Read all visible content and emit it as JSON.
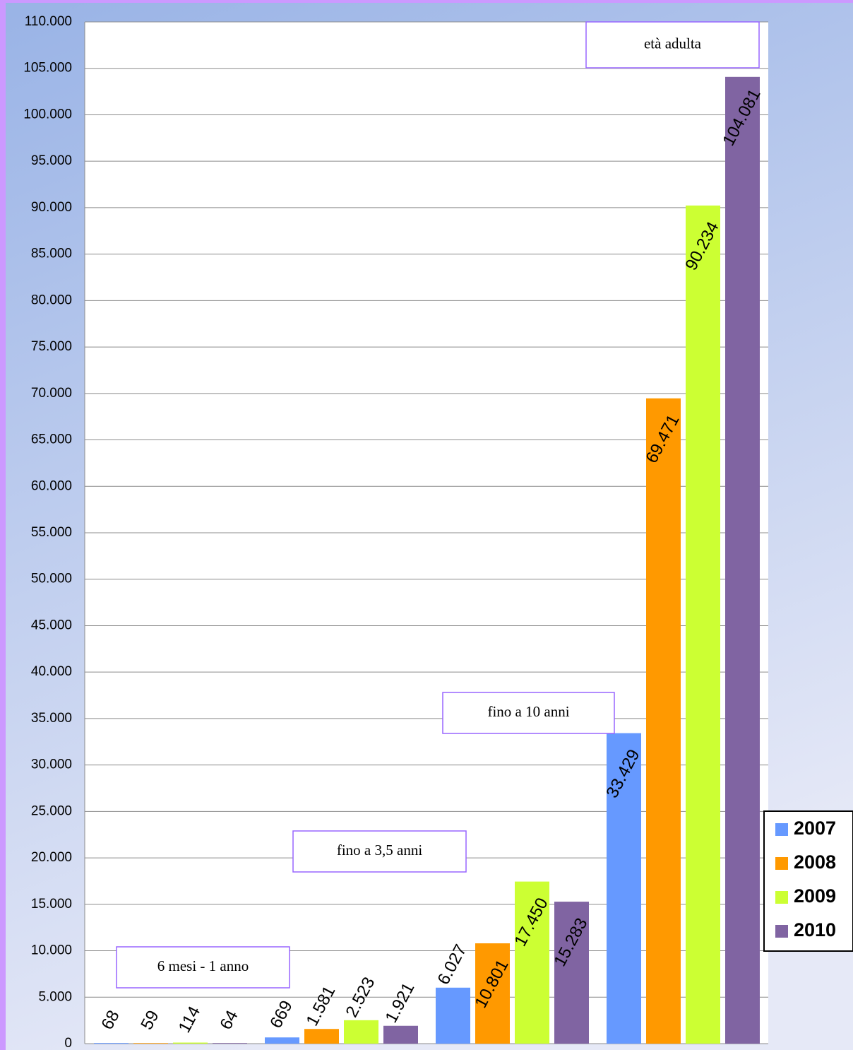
{
  "chart_data": {
    "type": "bar",
    "categories": [
      null,
      null,
      null,
      null
    ],
    "series": [
      {
        "name": "2007",
        "color": "#6699ff",
        "values": [
          68,
          669,
          6027,
          33429
        ],
        "value_labels": [
          "68",
          "669",
          "6.027",
          "33.429"
        ]
      },
      {
        "name": "2008",
        "color": "#ff9900",
        "values": [
          59,
          1581,
          10801,
          69471
        ],
        "value_labels": [
          "59",
          "1.581",
          "10.801",
          "69.471"
        ]
      },
      {
        "name": "2009",
        "color": "#ccff33",
        "values": [
          114,
          2523,
          17450,
          90234
        ],
        "value_labels": [
          "114",
          "2.523",
          "17.450",
          "90.234"
        ]
      },
      {
        "name": "2010",
        "color": "#8064a2",
        "values": [
          64,
          1921,
          15283,
          104081
        ],
        "value_labels": [
          "64",
          "1.921",
          "15.283",
          "104.081"
        ]
      }
    ],
    "annotations": [
      "6 mesi - 1 anno",
      "fino a 3,5 anni",
      "fino a 10 anni",
      "età adulta"
    ],
    "ylim": [
      0,
      110000
    ],
    "yticks": [
      0,
      {
        "value": 5000,
        "label": "5.000"
      },
      {
        "value": 10000,
        "label": "10.000"
      },
      {
        "value": 15000,
        "label": "15.000"
      },
      {
        "value": 20000,
        "label": "20.000"
      },
      {
        "value": 25000,
        "label": "25.000"
      },
      {
        "value": 30000,
        "label": "30.000"
      },
      {
        "value": 35000,
        "label": "35.000"
      },
      {
        "value": 40000,
        "label": "40.000"
      },
      {
        "value": 45000,
        "label": "45.000"
      },
      {
        "value": 50000,
        "label": "50.000"
      },
      {
        "value": 55000,
        "label": "55.000"
      },
      {
        "value": 60000,
        "label": "60.000"
      },
      {
        "value": 65000,
        "label": "65.000"
      },
      {
        "value": 70000,
        "label": "70.000"
      },
      {
        "value": 75000,
        "label": "75.000"
      },
      {
        "value": 80000,
        "label": "80.000"
      },
      {
        "value": 85000,
        "label": "85.000"
      },
      {
        "value": 90000,
        "label": "90.000"
      },
      {
        "value": 95000,
        "label": "95.000"
      },
      {
        "value": 100000,
        "label": "100.000"
      },
      {
        "value": 105000,
        "label": "105.000"
      },
      {
        "value": 110000,
        "label": "110.000"
      }
    ],
    "grid": true,
    "legend": "right"
  }
}
